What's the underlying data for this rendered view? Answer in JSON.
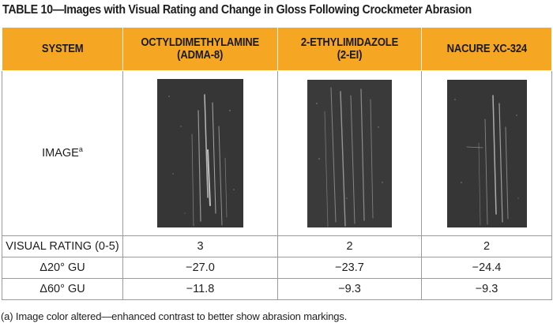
{
  "title": "TABLE 10—Images with Visual Rating and Change in Gloss Following Crockmeter Abrasion",
  "columns": [
    "SYSTEM",
    "OCTYLDIMETHYLAMINE\n(ADMA-8)",
    "2-ETHYLIMIDAZOLE\n(2-EI)",
    "NACURE XC-324"
  ],
  "image_row": {
    "label": "IMAGE",
    "label_sup": "a"
  },
  "rows": [
    {
      "label": "VISUAL RATING (0-5)",
      "values": [
        "3",
        "2",
        "2"
      ]
    },
    {
      "label": "Δ20° GU",
      "values": [
        "−27.0",
        "−23.7",
        "−24.4"
      ]
    },
    {
      "label": "Δ60° GU",
      "values": [
        "−11.8",
        "−9.3",
        "−9.3"
      ]
    }
  ],
  "footnote": "(a) Image color altered—enhanced contrast to better show abrasion markings."
}
